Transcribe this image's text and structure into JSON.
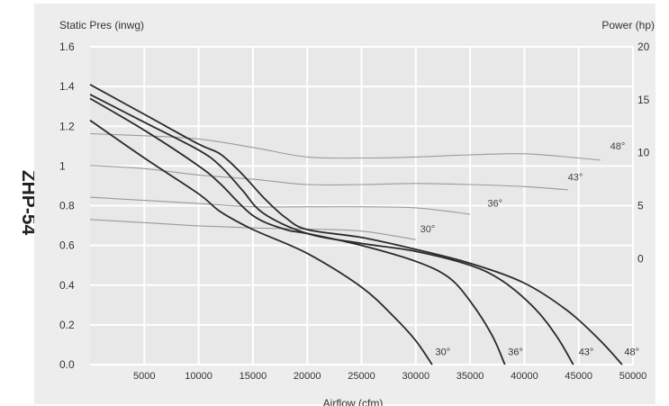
{
  "model_label": "ZHP-54",
  "chart_data": {
    "type": "line",
    "title": "",
    "xlabel": "Airflow (cfm)",
    "ylabel": "Static Pres (inwg)",
    "y2label": "Power (hp)",
    "xlim": [
      0,
      50000
    ],
    "ylim": [
      0,
      1.6
    ],
    "y2_range": [
      -10,
      20
    ],
    "x_ticks": [
      5000,
      10000,
      15000,
      20000,
      25000,
      30000,
      35000,
      40000,
      45000,
      50000
    ],
    "y_ticks": [
      0,
      0.2,
      0.4,
      0.6,
      0.8,
      1,
      1.2,
      1.4,
      1.6
    ],
    "y_tick_labels": [
      "0.0",
      "0.2",
      "0.4",
      "0.6",
      "0.8",
      "1",
      "1.2",
      "1.4",
      "1.6"
    ],
    "y2_ticks": [
      0,
      5,
      10,
      15,
      20
    ],
    "grid": true,
    "background": "#e8e8e8",
    "pressure_curves": [
      {
        "label": "30°",
        "color": "#2a2a2a",
        "points": [
          [
            0,
            1.23
          ],
          [
            5000,
            1.04
          ],
          [
            10000,
            0.86
          ],
          [
            12000,
            0.77
          ],
          [
            15000,
            0.68
          ],
          [
            20000,
            0.56
          ],
          [
            25000,
            0.39
          ],
          [
            28000,
            0.24
          ],
          [
            30000,
            0.12
          ],
          [
            31500,
            0.0
          ]
        ]
      },
      {
        "label": "36°",
        "color": "#2a2a2a",
        "points": [
          [
            0,
            1.34
          ],
          [
            5000,
            1.18
          ],
          [
            10000,
            1.0
          ],
          [
            12000,
            0.91
          ],
          [
            15000,
            0.75
          ],
          [
            18000,
            0.68
          ],
          [
            20000,
            0.66
          ],
          [
            25000,
            0.6
          ],
          [
            30000,
            0.52
          ],
          [
            33000,
            0.44
          ],
          [
            35000,
            0.32
          ],
          [
            37000,
            0.15
          ],
          [
            38200,
            0.0
          ]
        ]
      },
      {
        "label": "43°",
        "color": "#2a2a2a",
        "points": [
          [
            0,
            1.36
          ],
          [
            5000,
            1.22
          ],
          [
            10000,
            1.08
          ],
          [
            12000,
            1.0
          ],
          [
            14000,
            0.88
          ],
          [
            16000,
            0.76
          ],
          [
            20000,
            0.66
          ],
          [
            25000,
            0.61
          ],
          [
            30000,
            0.57
          ],
          [
            35000,
            0.5
          ],
          [
            38000,
            0.42
          ],
          [
            41000,
            0.28
          ],
          [
            43000,
            0.14
          ],
          [
            44500,
            0.0
          ]
        ]
      },
      {
        "label": "48°",
        "color": "#2a2a2a",
        "points": [
          [
            0,
            1.41
          ],
          [
            5000,
            1.26
          ],
          [
            10000,
            1.11
          ],
          [
            12000,
            1.06
          ],
          [
            14000,
            0.96
          ],
          [
            16000,
            0.84
          ],
          [
            18000,
            0.74
          ],
          [
            20000,
            0.68
          ],
          [
            25000,
            0.64
          ],
          [
            30000,
            0.58
          ],
          [
            35000,
            0.51
          ],
          [
            40000,
            0.41
          ],
          [
            44000,
            0.27
          ],
          [
            47000,
            0.12
          ],
          [
            49000,
            0.0
          ]
        ]
      }
    ],
    "power_curves": [
      {
        "label": "30°",
        "color": "#9a9a9a",
        "points": [
          [
            0,
            3.7
          ],
          [
            5000,
            3.4
          ],
          [
            10000,
            3.1
          ],
          [
            15000,
            2.9
          ],
          [
            20000,
            2.8
          ],
          [
            25000,
            2.6
          ],
          [
            30000,
            1.8
          ]
        ]
      },
      {
        "label": "36°",
        "color": "#9a9a9a",
        "points": [
          [
            0,
            5.8
          ],
          [
            5000,
            5.5
          ],
          [
            10000,
            5.2
          ],
          [
            15000,
            4.9
          ],
          [
            20000,
            4.9
          ],
          [
            25000,
            4.9
          ],
          [
            30000,
            4.8
          ],
          [
            35000,
            4.2
          ]
        ]
      },
      {
        "label": "43°",
        "color": "#9a9a9a",
        "points": [
          [
            0,
            8.8
          ],
          [
            5000,
            8.5
          ],
          [
            10000,
            7.9
          ],
          [
            15000,
            7.5
          ],
          [
            20000,
            7.0
          ],
          [
            25000,
            7.0
          ],
          [
            30000,
            7.1
          ],
          [
            35000,
            7.0
          ],
          [
            40000,
            6.8
          ],
          [
            44000,
            6.5
          ]
        ]
      },
      {
        "label": "48°",
        "color": "#9a9a9a",
        "points": [
          [
            0,
            11.8
          ],
          [
            5000,
            11.6
          ],
          [
            10000,
            11.3
          ],
          [
            15000,
            10.5
          ],
          [
            20000,
            9.6
          ],
          [
            25000,
            9.5
          ],
          [
            30000,
            9.6
          ],
          [
            35000,
            9.8
          ],
          [
            40000,
            9.9
          ],
          [
            45000,
            9.5
          ],
          [
            47000,
            9.3
          ]
        ]
      }
    ],
    "pressure_labels": [
      {
        "text": "30°",
        "x": 31800,
        "y": 0.03
      },
      {
        "text": "36°",
        "x": 38500,
        "y": 0.03
      },
      {
        "text": "43°",
        "x": 45000,
        "y": 0.03
      },
      {
        "text": "48°",
        "x": 49200,
        "y": 0.03
      }
    ],
    "power_labels": [
      {
        "text": "30°",
        "x": 30400,
        "y": 2.5
      },
      {
        "text": "36°",
        "x": 36600,
        "y": 4.9
      },
      {
        "text": "43°",
        "x": 44000,
        "y": 7.4
      },
      {
        "text": "48°",
        "x": 47900,
        "y": 10.3
      }
    ]
  }
}
